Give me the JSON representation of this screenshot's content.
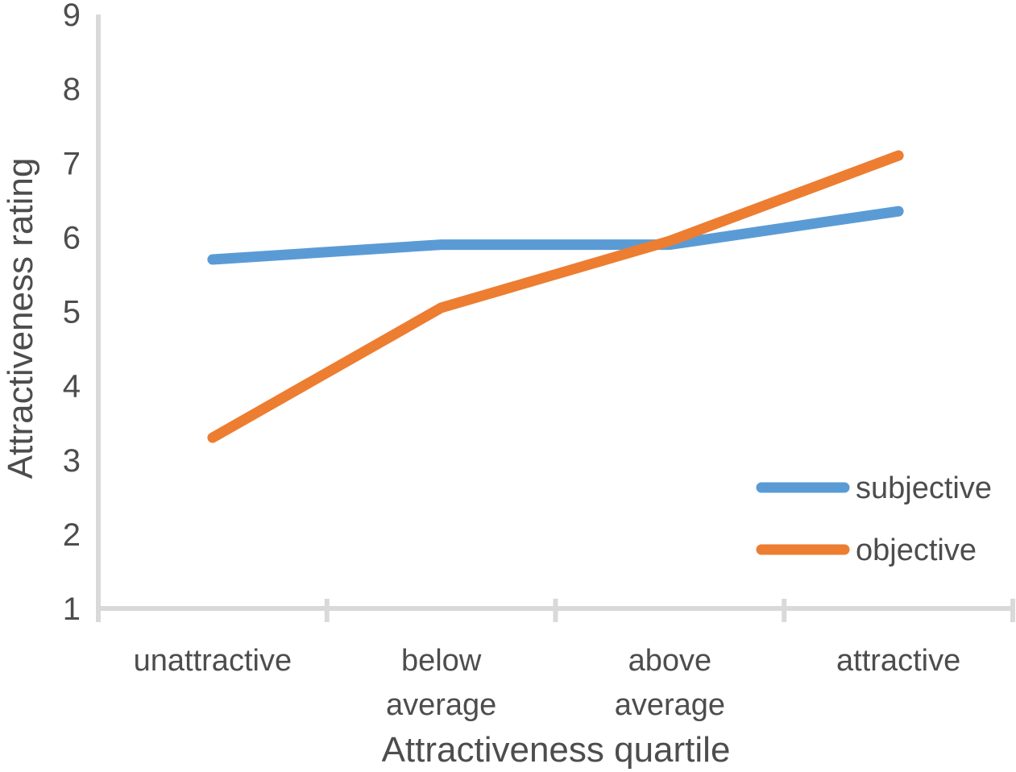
{
  "chart_data": {
    "type": "line",
    "categories": [
      "unattractive",
      "below average",
      "above average",
      "attractive"
    ],
    "series": [
      {
        "name": "subjective",
        "color": "#5B9BD5",
        "values": [
          5.7,
          5.9,
          5.9,
          6.35
        ]
      },
      {
        "name": "objective",
        "color": "#ED7D31",
        "values": [
          3.3,
          5.05,
          5.95,
          7.1
        ]
      }
    ],
    "title": "",
    "xlabel": "Attractiveness quartile",
    "ylabel": "Attractiveness rating",
    "ylim": [
      1,
      9
    ],
    "y_ticks": [
      1,
      2,
      3,
      4,
      5,
      6,
      7,
      8,
      9
    ],
    "grid": "off",
    "legend_position": "right-middle"
  },
  "colors": {
    "axis": "#D9D9D9",
    "text": "#4D4D4D",
    "background": "#FFFFFF"
  }
}
